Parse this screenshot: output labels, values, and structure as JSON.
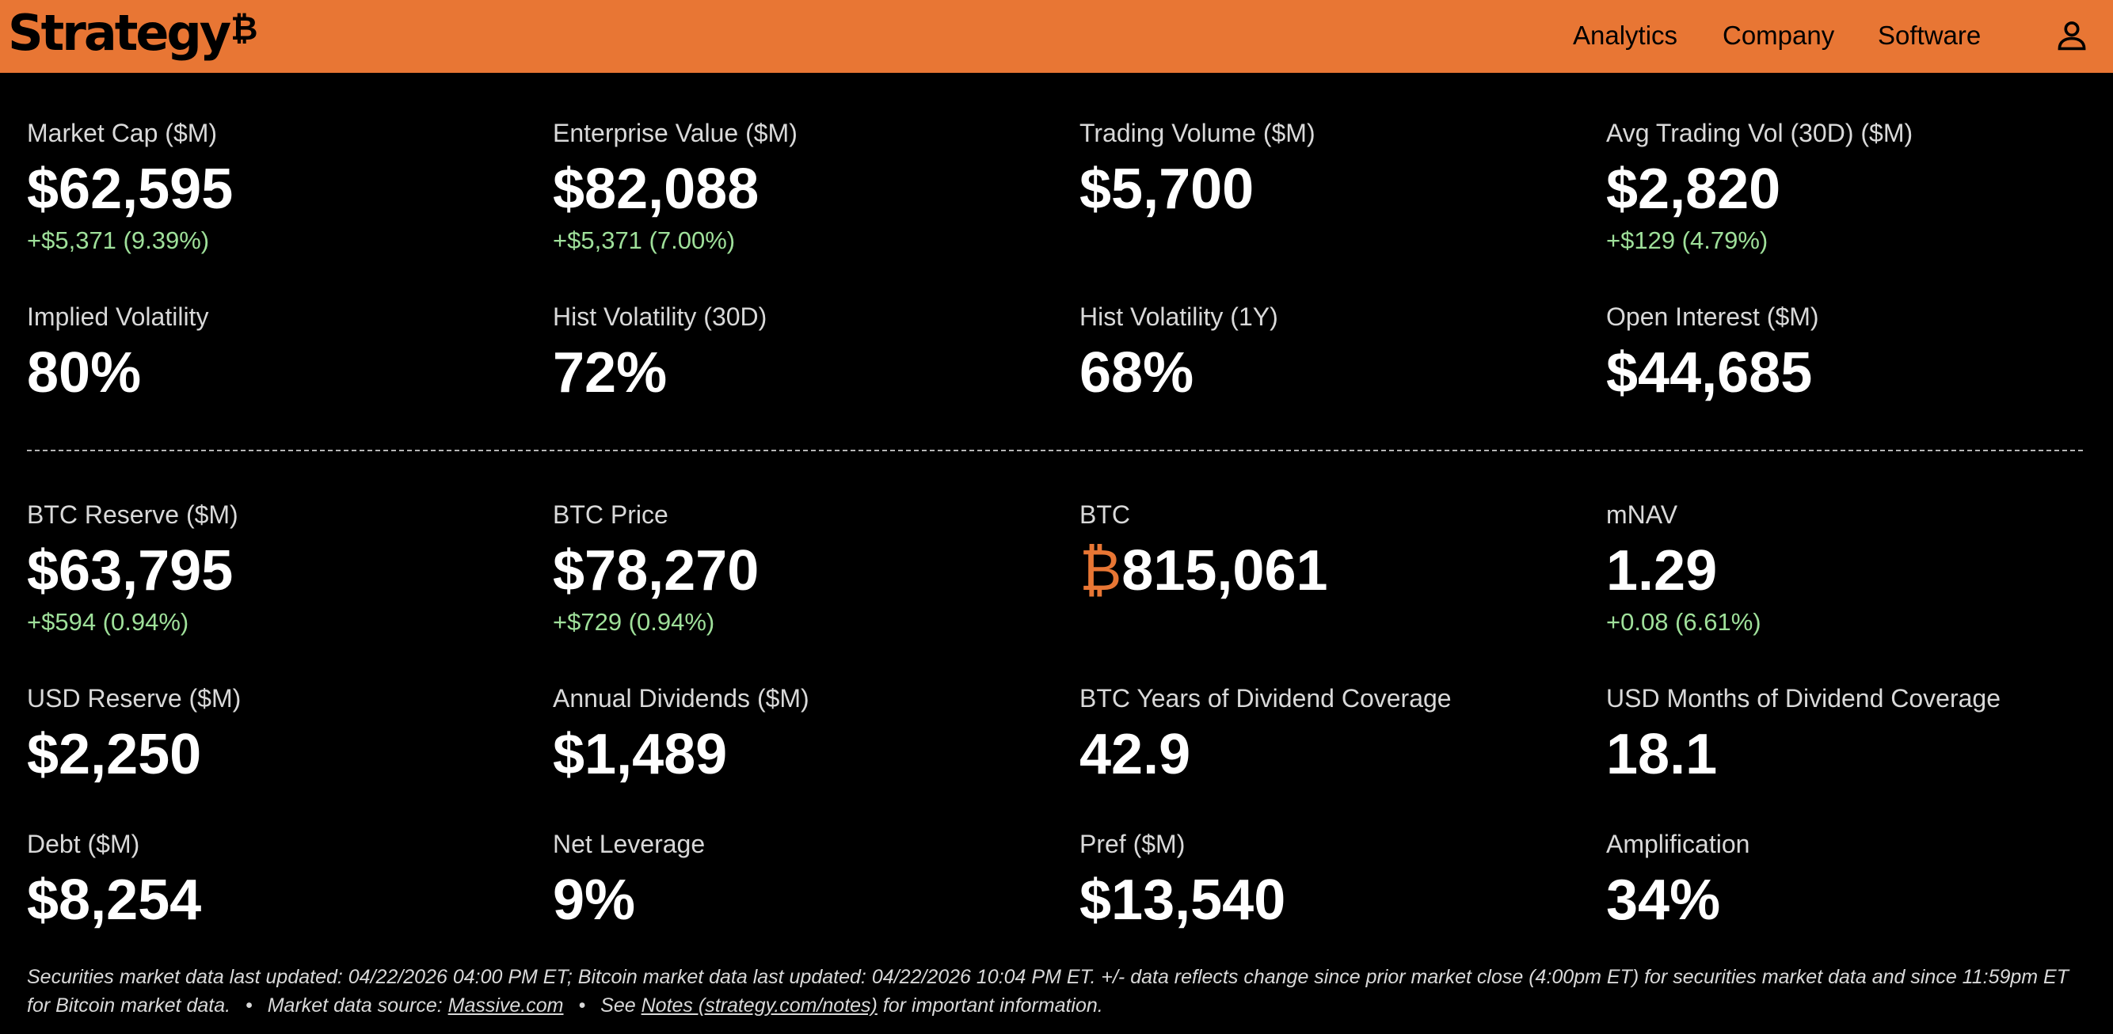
{
  "header": {
    "logo_text": "Strategy",
    "logo_symbol": "₿",
    "nav": [
      "Analytics",
      "Company",
      "Software"
    ],
    "accent_color": "#e87634"
  },
  "metrics": {
    "market_cap": {
      "label": "Market Cap ($M)",
      "value": "$62,595",
      "change": "+$5,371 (9.39%)"
    },
    "enterprise_value": {
      "label": "Enterprise Value ($M)",
      "value": "$82,088",
      "change": "+$5,371 (7.00%)"
    },
    "trading_volume": {
      "label": "Trading Volume ($M)",
      "value": "$5,700"
    },
    "avg_trading_vol": {
      "label": "Avg Trading Vol (30D) ($M)",
      "value": "$2,820",
      "change": "+$129 (4.79%)"
    },
    "implied_volatility": {
      "label": "Implied Volatility",
      "value": "80%"
    },
    "hist_vol_30d": {
      "label": "Hist Volatility (30D)",
      "value": "72%"
    },
    "hist_vol_1y": {
      "label": "Hist Volatility (1Y)",
      "value": "68%"
    },
    "open_interest": {
      "label": "Open Interest ($M)",
      "value": "$44,685"
    },
    "btc_reserve": {
      "label": "BTC Reserve ($M)",
      "value": "$63,795",
      "change": "+$594 (0.94%)"
    },
    "btc_price": {
      "label": "BTC Price",
      "value": "$78,270",
      "change": "+$729 (0.94%)"
    },
    "btc": {
      "label": "BTC",
      "symbol": "₿",
      "value": "815,061"
    },
    "mnav": {
      "label": "mNAV",
      "value": "1.29",
      "change": "+0.08 (6.61%)"
    },
    "usd_reserve": {
      "label": "USD Reserve ($M)",
      "value": "$2,250"
    },
    "annual_dividends": {
      "label": "Annual Dividends ($M)",
      "value": "$1,489"
    },
    "btc_years_coverage": {
      "label": "BTC Years of Dividend Coverage",
      "value": "42.9"
    },
    "usd_months_coverage": {
      "label": "USD Months of Dividend Coverage",
      "value": "18.1"
    },
    "debt": {
      "label": "Debt ($M)",
      "value": "$8,254"
    },
    "net_leverage": {
      "label": "Net Leverage",
      "value": "9%"
    },
    "pref": {
      "label": "Pref ($M)",
      "value": "$13,540"
    },
    "amplification": {
      "label": "Amplification",
      "value": "34%"
    }
  },
  "footer": {
    "text1": "Securities market data last updated: 04/22/2026 04:00 PM ET; Bitcoin market data last updated: 04/22/2026 10:04 PM ET. +/- data reflects change since prior market close (4:00pm ET) for securities market data and since 11:59pm ET for Bitcoin market data.",
    "bullet": "•",
    "source_prefix": "Market data source:",
    "source_link": "Massive.com",
    "see_prefix": "See",
    "notes_link": "Notes (strategy.com/notes)",
    "see_suffix": "for important information."
  }
}
